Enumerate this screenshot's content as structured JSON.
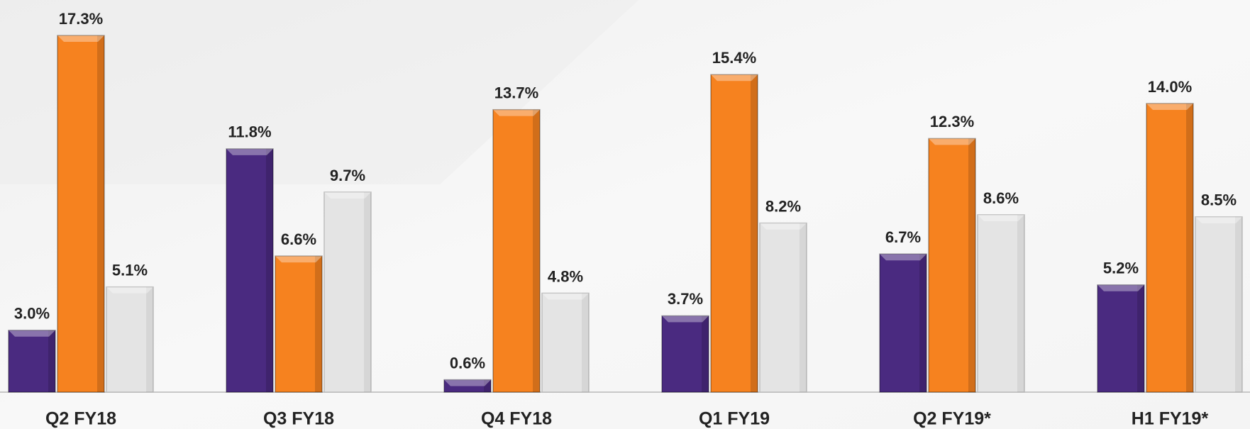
{
  "chart_data": {
    "type": "bar",
    "categories": [
      "Q2 FY18",
      "Q3 FY18",
      "Q4 FY18",
      "Q1 FY19",
      "Q2 FY19*",
      "H1 FY19*"
    ],
    "series": [
      {
        "color": "#4a2a80",
        "values": [
          3.0,
          11.8,
          0.6,
          3.7,
          6.7,
          5.2
        ],
        "value_labels": [
          "3.0%",
          "11.8%",
          "0.6%",
          "3.7%",
          "6.7%",
          "5.2%"
        ]
      },
      {
        "color": "#f6821f",
        "values": [
          17.3,
          6.6,
          13.7,
          15.4,
          12.3,
          14.0
        ],
        "value_labels": [
          "17.3%",
          "6.6%",
          "13.7%",
          "15.4%",
          "12.3%",
          "14.0%"
        ]
      },
      {
        "color": "#e4e4e4",
        "values": [
          5.1,
          9.7,
          4.8,
          8.2,
          8.6,
          8.5
        ],
        "value_labels": [
          "5.1%",
          "9.7%",
          "4.8%",
          "8.2%",
          "8.6%",
          "8.5%"
        ]
      }
    ]
  }
}
